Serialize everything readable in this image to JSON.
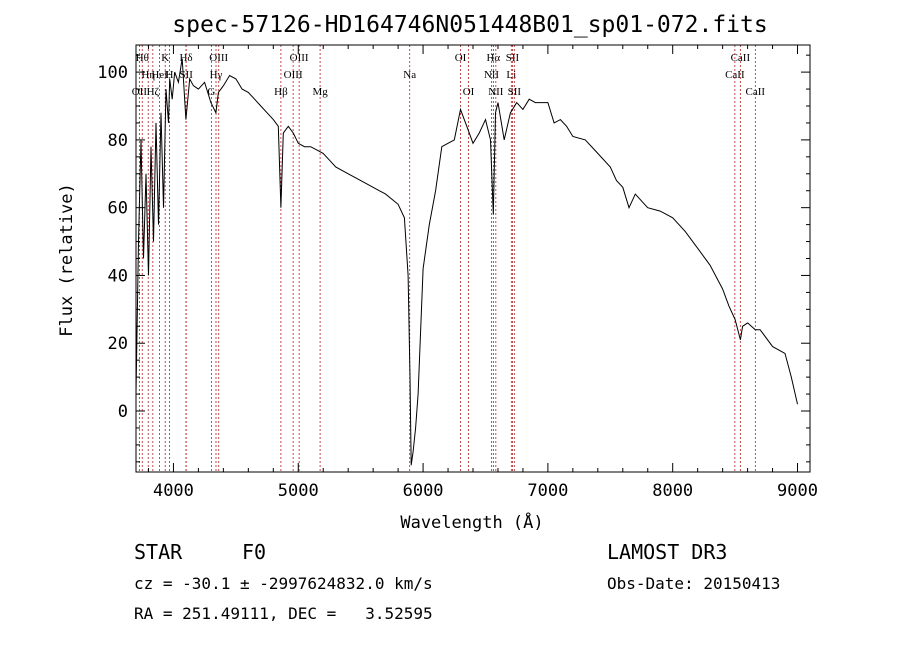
{
  "chart_data": {
    "type": "line",
    "title": "spec-57126-HD164746N051448B01_sp01-072.fits",
    "xlabel": "Wavelength (Å)",
    "ylabel": "Flux (relative)",
    "xlim": [
      3700,
      9100
    ],
    "ylim": [
      -18,
      108
    ],
    "xticks": [
      4000,
      5000,
      6000,
      7000,
      8000,
      9000
    ],
    "yticks": [
      0,
      20,
      40,
      60,
      80,
      100
    ],
    "grid": false,
    "line_color": "#000000",
    "marker_color": "#b22222",
    "series": [
      {
        "x": [
          3700,
          3720,
          3740,
          3760,
          3780,
          3800,
          3820,
          3840,
          3860,
          3880,
          3900,
          3920,
          3940,
          3960,
          3970,
          3990,
          4010,
          4040,
          4070,
          4100,
          4130,
          4160,
          4200,
          4250,
          4300,
          4340,
          4360,
          4400,
          4450,
          4500,
          4550,
          4600,
          4650,
          4700,
          4750,
          4800,
          4840,
          4861,
          4880,
          4920,
          4960,
          5000,
          5050,
          5100,
          5150,
          5200,
          5250,
          5300,
          5400,
          5500,
          5600,
          5700,
          5800,
          5850,
          5880,
          5895,
          5905,
          5920,
          5940,
          5960,
          6000,
          6050,
          6100,
          6150,
          6200,
          6250,
          6300,
          6350,
          6400,
          6450,
          6500,
          6540,
          6563,
          6580,
          6600,
          6650,
          6700,
          6750,
          6800,
          6850,
          6900,
          6950,
          7000,
          7050,
          7100,
          7150,
          7200,
          7300,
          7400,
          7500,
          7550,
          7600,
          7650,
          7700,
          7800,
          7900,
          8000,
          8100,
          8200,
          8300,
          8400,
          8450,
          8500,
          8542,
          8560,
          8600,
          8662,
          8700,
          8800,
          8900,
          8950,
          9000
        ],
        "y": [
          5,
          50,
          80,
          45,
          70,
          40,
          78,
          50,
          85,
          55,
          88,
          60,
          95,
          85,
          98,
          92,
          100,
          97,
          104,
          86,
          98,
          96,
          95,
          97,
          91,
          88,
          94,
          96,
          99,
          98,
          95,
          94,
          92,
          90,
          88,
          86,
          84,
          60,
          82,
          84,
          82,
          79,
          78,
          78,
          77,
          76,
          74,
          72,
          70,
          68,
          66,
          64,
          61,
          57,
          40,
          10,
          -16,
          -12,
          -5,
          5,
          42,
          55,
          65,
          78,
          79,
          80,
          89,
          84,
          79,
          82,
          86,
          80,
          58,
          88,
          91,
          80,
          88,
          91,
          89,
          92,
          91,
          91,
          91,
          85,
          86,
          84,
          81,
          80,
          76,
          72,
          68,
          66,
          60,
          64,
          60,
          59,
          57,
          53,
          48,
          43,
          36,
          31,
          27,
          21,
          25,
          26,
          24,
          24,
          19,
          17,
          10,
          2
        ]
      }
    ],
    "markers": [
      {
        "wave": 3750,
        "label": "Hθ",
        "row": 1
      },
      {
        "wave": 3798,
        "label": "Hη",
        "row": 2
      },
      {
        "wave": 3727,
        "label": "OII",
        "row": 3
      },
      {
        "wave": 3835,
        "label": "Hζ",
        "row": 3
      },
      {
        "wave": 3889,
        "label": "HeI",
        "row": 2
      },
      {
        "wave": 3934,
        "label": "K",
        "row": 1
      },
      {
        "wave": 3968,
        "label": "H",
        "row": 2
      },
      {
        "wave": 4101,
        "label": "Hδ",
        "row": 1
      },
      {
        "wave": 4102,
        "label": "SII",
        "row": 2
      },
      {
        "wave": 4304,
        "label": "G",
        "row": 3
      },
      {
        "wave": 4341,
        "label": "Hγ",
        "row": 2
      },
      {
        "wave": 4363,
        "label": "OIII",
        "row": 1
      },
      {
        "wave": 4861,
        "label": "Hβ",
        "row": 3
      },
      {
        "wave": 4959,
        "label": "OIII",
        "row": 2
      },
      {
        "wave": 5007,
        "label": "OIII",
        "row": 1
      },
      {
        "wave": 5175,
        "label": "Mg",
        "row": 3
      },
      {
        "wave": 5893,
        "label": "Na",
        "row": 2
      },
      {
        "wave": 6300,
        "label": "OI",
        "row": 1
      },
      {
        "wave": 6364,
        "label": "OI",
        "row": 3
      },
      {
        "wave": 6548,
        "label": "NII",
        "row": 2
      },
      {
        "wave": 6563,
        "label": "Hα",
        "row": 1
      },
      {
        "wave": 6583,
        "label": "NII",
        "row": 3
      },
      {
        "wave": 6707,
        "label": "Li",
        "row": 2
      },
      {
        "wave": 6716,
        "label": "SII",
        "row": 1
      },
      {
        "wave": 6731,
        "label": "SII",
        "row": 3
      },
      {
        "wave": 8498,
        "label": "CaII",
        "row": 2
      },
      {
        "wave": 8542,
        "label": "CaII",
        "row": 1
      },
      {
        "wave": 8662,
        "label": "CaII",
        "row": 3
      }
    ]
  },
  "info": {
    "object_class": "STAR",
    "subclass": "F0",
    "survey": "LAMOST DR3",
    "cz": "cz = -30.1 ± -2997624832.0 km/s",
    "obs_date": "Obs-Date: 20150413",
    "coords": "RA = 251.49111, DEC =   3.52595"
  }
}
